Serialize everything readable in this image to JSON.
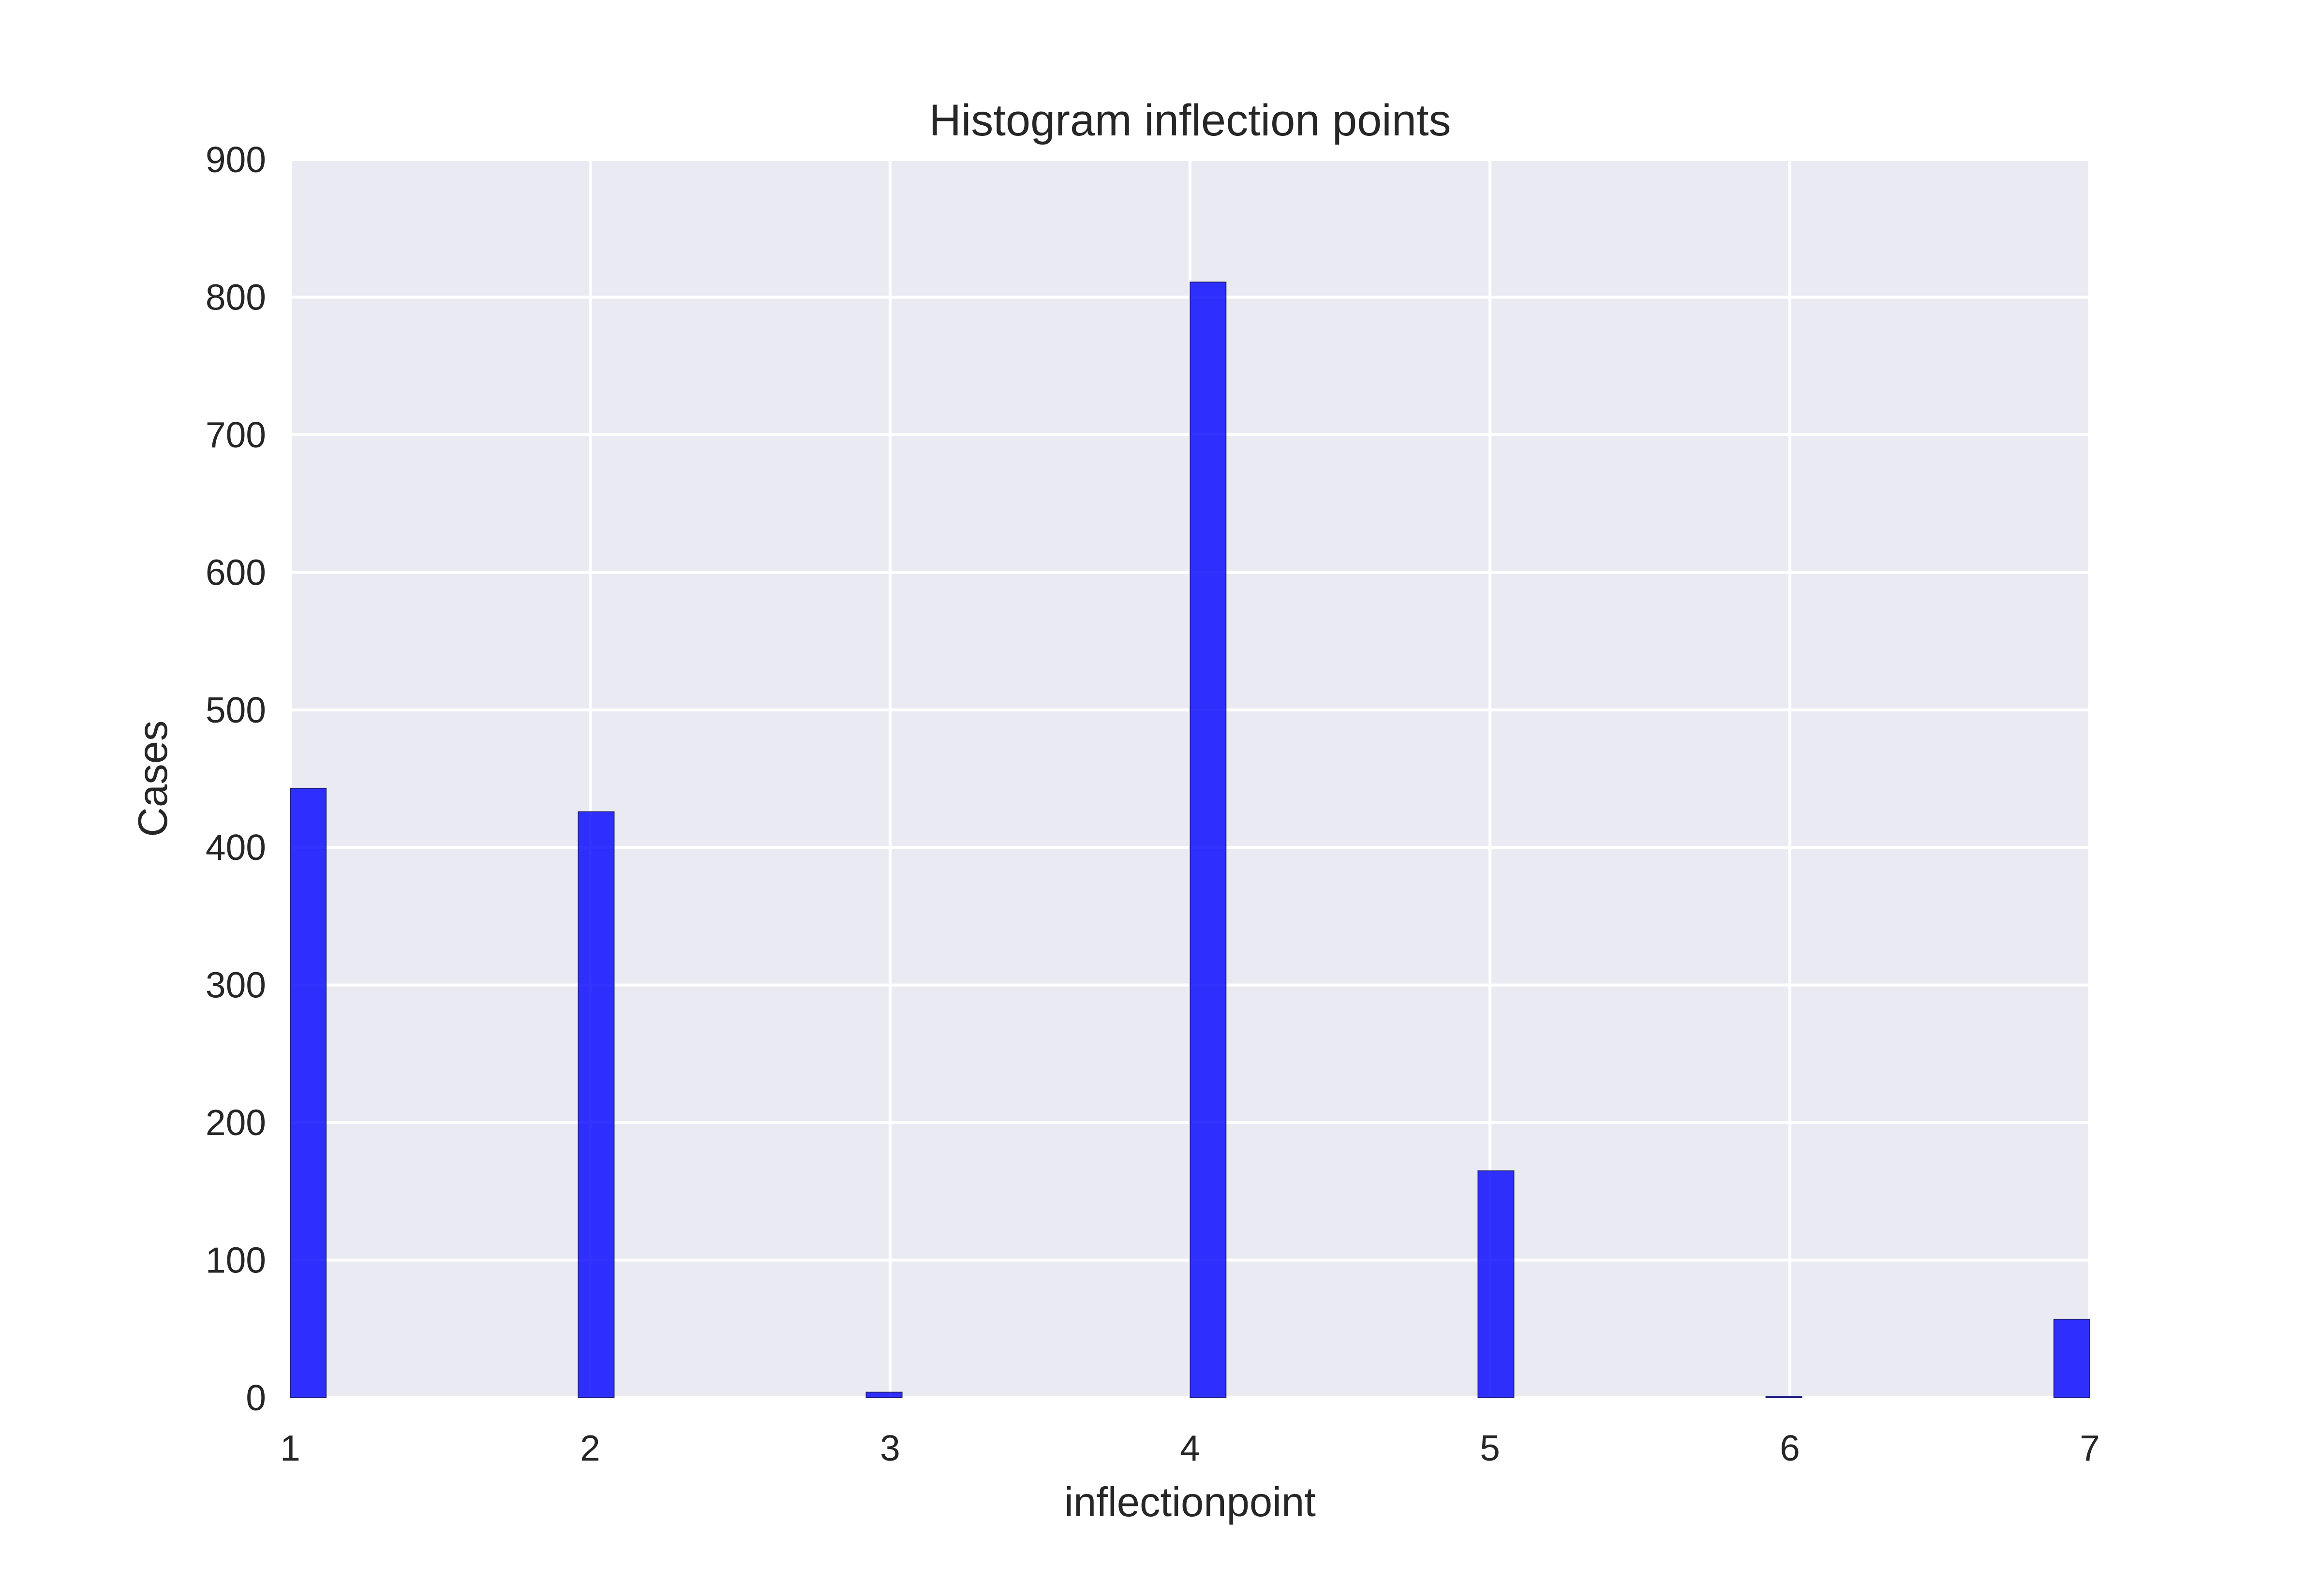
{
  "chart_data": {
    "type": "bar",
    "title": "Histogram inflection points",
    "xlabel": "inflectionpoint",
    "ylabel": "Cases",
    "xlim": [
      1,
      7
    ],
    "ylim": [
      0,
      900
    ],
    "xticks": [
      1,
      2,
      3,
      4,
      5,
      6,
      7
    ],
    "yticks": [
      0,
      100,
      200,
      300,
      400,
      500,
      600,
      700,
      800,
      900
    ],
    "bin_width": 0.12,
    "bins": [
      {
        "x_start": 1.0,
        "value": 443
      },
      {
        "x_start": 1.96,
        "value": 426
      },
      {
        "x_start": 2.92,
        "value": 4
      },
      {
        "x_start": 4.0,
        "value": 811
      },
      {
        "x_start": 4.96,
        "value": 165
      },
      {
        "x_start": 5.92,
        "value": 1
      },
      {
        "x_start": 6.88,
        "value": 57
      }
    ],
    "grid": true,
    "colors": {
      "bar_fill": "#0000ff",
      "bar_opacity": 0.8,
      "plot_background": "#eaeaf2",
      "grid": "#ffffff",
      "text": "#262626"
    }
  }
}
